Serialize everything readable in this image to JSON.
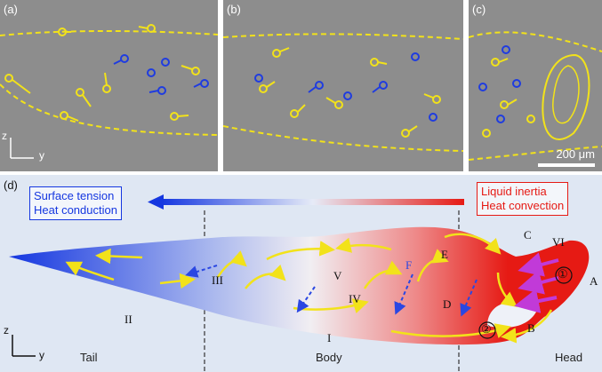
{
  "panel_a": {
    "label": "(a)"
  },
  "panel_b": {
    "label": "(b)"
  },
  "panel_c": {
    "label": "(c)",
    "scale_bar": "200 μm"
  },
  "panel_d": {
    "label": "(d)",
    "left_box": [
      "Surface tension",
      "Heat conduction"
    ],
    "right_box": [
      "Liquid inertia",
      "Heat convection"
    ],
    "regions": [
      "Tail",
      "Body",
      "Head"
    ],
    "flow_labels": [
      "I",
      "II",
      "III",
      "IV",
      "V",
      "VI",
      "A",
      "B",
      "C",
      "D",
      "E",
      "F",
      "①",
      "②"
    ],
    "axes": {
      "vertical": "z",
      "horizontal": "y"
    }
  },
  "colors": {
    "yellow": "#f2e21a",
    "blue": "#1f3ce0",
    "red": "#e81c14",
    "magenta": "#c13ad8",
    "gray": "#8d8d8d"
  }
}
